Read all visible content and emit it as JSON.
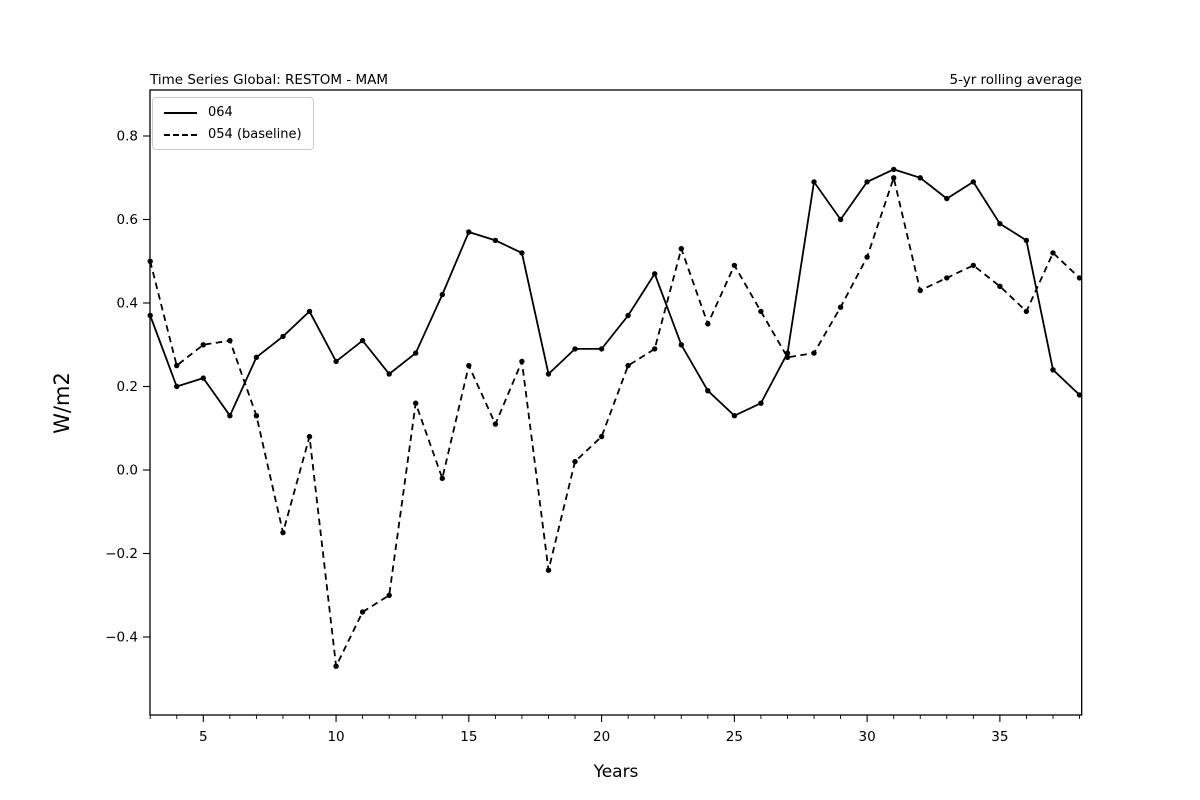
{
  "titles": {
    "left": "Time Series Global: RESTOM - MAM",
    "right": "5-yr rolling average"
  },
  "axes": {
    "xlabel": "Years",
    "ylabel": "W/m2"
  },
  "legend": {
    "items": [
      {
        "label": "064",
        "style": "solid"
      },
      {
        "label": "054 (baseline)",
        "style": "dashed"
      }
    ]
  },
  "colors": {
    "line": "#000000",
    "legend_border": "#cccccc",
    "background": "#ffffff"
  },
  "chart_data": {
    "type": "line",
    "title": "Time Series Global: RESTOM - MAM",
    "annotation_right": "5-yr rolling average",
    "xlabel": "Years",
    "ylabel": "W/m2",
    "grid": false,
    "legend_position": "upper left",
    "xlim": [
      3,
      38.1
    ],
    "ylim": [
      -0.6,
      0.92
    ],
    "x_major_ticks": [
      {
        "value": 5,
        "label": "5"
      },
      {
        "value": 10,
        "label": "10"
      },
      {
        "value": 15,
        "label": "15"
      },
      {
        "value": 20,
        "label": "20"
      },
      {
        "value": 25,
        "label": "25"
      },
      {
        "value": 30,
        "label": "30"
      },
      {
        "value": 35,
        "label": "35"
      }
    ],
    "y_ticks": [
      {
        "value": 0.8,
        "label": "0.8"
      },
      {
        "value": 0.6,
        "label": "0.6"
      },
      {
        "value": 0.4,
        "label": "0.4"
      },
      {
        "value": 0.2,
        "label": "0.2"
      },
      {
        "value": 0.0,
        "label": "0.0"
      },
      {
        "value": -0.2,
        "label": "−0.2"
      },
      {
        "value": -0.4,
        "label": "−0.4"
      }
    ],
    "x": [
      3,
      4,
      5,
      6,
      7,
      8,
      9,
      10,
      11,
      12,
      13,
      14,
      15,
      16,
      17,
      18,
      19,
      20,
      21,
      22,
      23,
      24,
      25,
      26,
      27,
      28,
      29,
      30,
      31,
      32,
      33,
      34,
      35,
      36,
      37,
      38
    ],
    "series": [
      {
        "name": "064",
        "style": "solid",
        "values": [
          0.37,
          0.2,
          0.22,
          0.13,
          0.27,
          0.32,
          0.38,
          0.26,
          0.31,
          0.23,
          0.28,
          0.42,
          0.57,
          0.55,
          0.52,
          0.23,
          0.29,
          0.29,
          0.37,
          0.47,
          0.3,
          0.19,
          0.13,
          0.16,
          0.28,
          0.69,
          0.6,
          0.69,
          0.72,
          0.7,
          0.65,
          0.69,
          0.59,
          0.55,
          0.24,
          0.18
        ]
      },
      {
        "name": "054 (baseline)",
        "style": "dashed",
        "values": [
          0.5,
          0.25,
          0.3,
          0.31,
          0.13,
          -0.15,
          0.08,
          -0.47,
          -0.34,
          -0.3,
          0.16,
          -0.02,
          0.25,
          0.11,
          0.26,
          -0.24,
          0.02,
          0.08,
          0.25,
          0.29,
          0.53,
          0.35,
          0.49,
          0.38,
          0.27,
          0.28,
          0.39,
          0.51,
          0.7,
          0.43,
          0.46,
          0.49,
          0.44,
          0.38,
          0.52,
          0.46
        ]
      }
    ]
  }
}
